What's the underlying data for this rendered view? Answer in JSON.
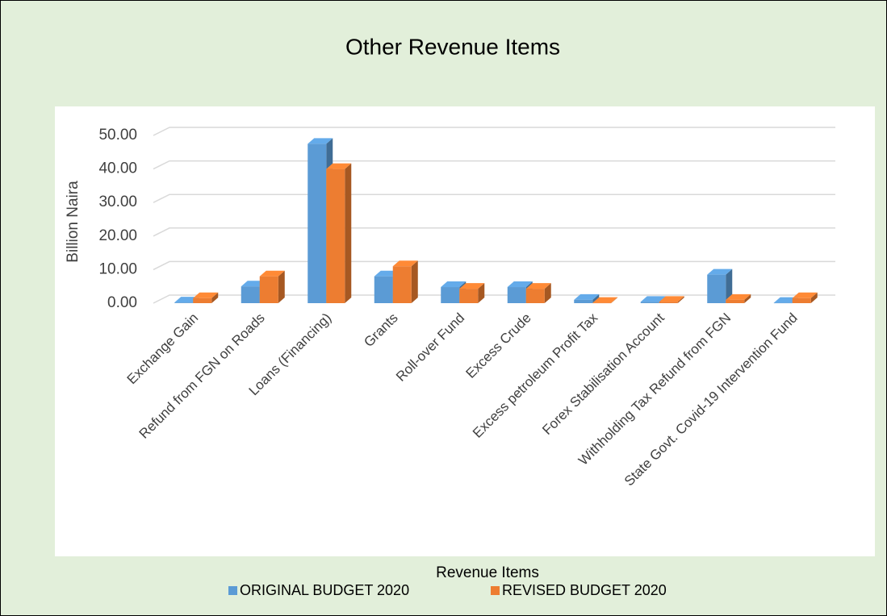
{
  "chart_data": {
    "type": "bar3d",
    "title": "Other Revenue Items",
    "y_label": "Billion Naira",
    "x_label": "Revenue Items",
    "categories": [
      "Exchange Gain",
      "Refund from FGN on Roads",
      "Loans (Financing)",
      "Grants",
      "Roll-over Fund",
      "Excess Crude",
      "Excess petroleum Profit Tax",
      "Forex Stabilisation Account",
      "Withholding Tax Refund from FGN",
      "State Govt. Covid-19 Intervention Fund"
    ],
    "series": [
      {
        "name": "ORIGINAL BUDGET 2020",
        "color": "#5b9bd5",
        "values": [
          0.2,
          5.0,
          47.5,
          8.0,
          4.8,
          4.8,
          1.0,
          0.4,
          8.5,
          0.1
        ]
      },
      {
        "name": "REVISED BUDGET 2020",
        "color": "#ed7d31",
        "values": [
          1.5,
          8.0,
          40.0,
          11.0,
          4.3,
          4.3,
          0.1,
          0.4,
          1.0,
          1.5
        ]
      }
    ],
    "ylim": [
      0,
      50
    ],
    "yticks": [
      {
        "value": 0,
        "label": "0.00"
      },
      {
        "value": 10,
        "label": "10.00"
      },
      {
        "value": 20,
        "label": "20.00"
      },
      {
        "value": 30,
        "label": "30.00"
      },
      {
        "value": 40,
        "label": "40.00"
      },
      {
        "value": 50,
        "label": "50.00"
      }
    ],
    "grid": true,
    "legend": "bottom"
  }
}
